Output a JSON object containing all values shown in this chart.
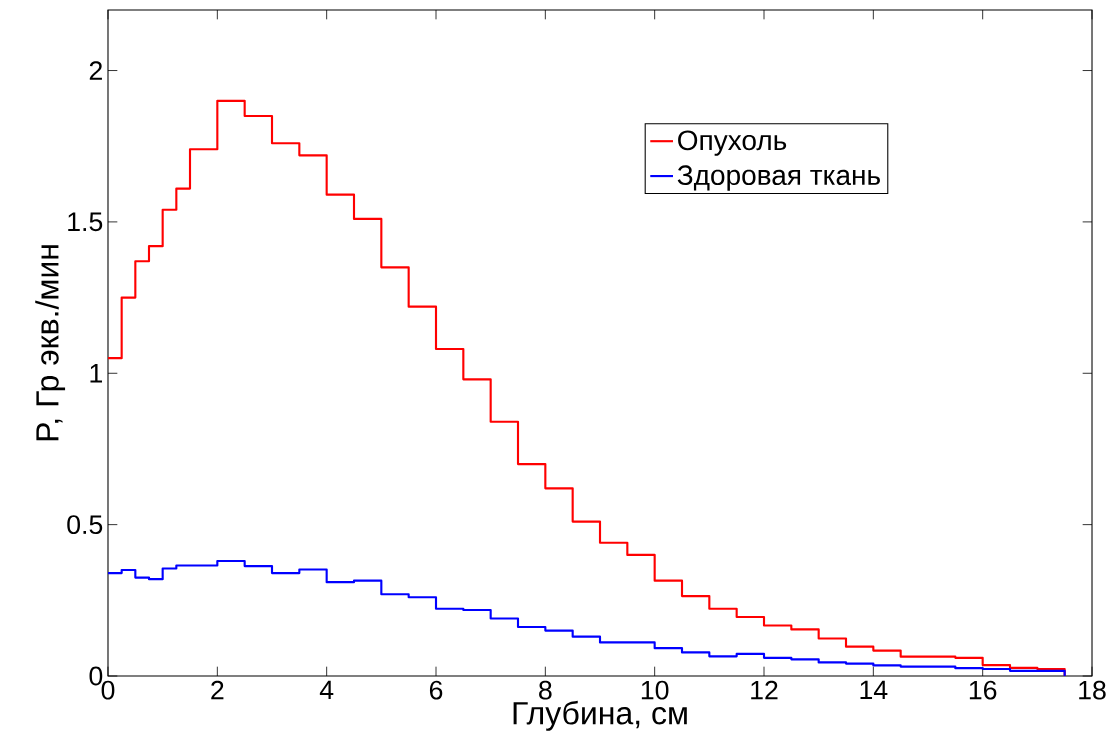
{
  "chart_data": {
    "type": "histogram",
    "xlabel": "Глубина, см",
    "ylabel": "P, Гр экв./мин",
    "bins": [
      0,
      0.25,
      0.5,
      0.75,
      1,
      1.25,
      1.5,
      2,
      2.5,
      3,
      3.5,
      4,
      4.5,
      5,
      5.5,
      6,
      6.5,
      7,
      7.5,
      8,
      8.5,
      9,
      9.5,
      10,
      10.5,
      11,
      11.5,
      12,
      12.5,
      13,
      13.5,
      14,
      14.5,
      15,
      15.5,
      16,
      16.5,
      17,
      17.5
    ],
    "series": [
      {
        "name": "Опухоль",
        "color": "#ff0000",
        "values": [
          1.05,
          1.25,
          1.37,
          1.42,
          1.54,
          1.61,
          1.74,
          1.9,
          1.85,
          1.76,
          1.72,
          1.59,
          1.51,
          1.35,
          1.22,
          1.08,
          0.98,
          0.84,
          0.7,
          0.62,
          0.51,
          0.44,
          0.4,
          0.315,
          0.264,
          0.222,
          0.195,
          0.167,
          0.154,
          0.124,
          0.097,
          0.084,
          0.064,
          0.064,
          0.06,
          0.036,
          0.027,
          0.023
        ]
      },
      {
        "name": "Здоровая ткань",
        "color": "#0000ff",
        "values": [
          0.34,
          0.35,
          0.325,
          0.32,
          0.355,
          0.365,
          0.365,
          0.38,
          0.363,
          0.34,
          0.352,
          0.31,
          0.315,
          0.27,
          0.26,
          0.222,
          0.218,
          0.19,
          0.162,
          0.15,
          0.13,
          0.111,
          0.111,
          0.092,
          0.078,
          0.065,
          0.073,
          0.06,
          0.055,
          0.045,
          0.041,
          0.035,
          0.031,
          0.031,
          0.026,
          0.023,
          0.017,
          0.017
        ]
      }
    ],
    "xlim": [
      0,
      18
    ],
    "ylim": [
      0,
      2.2
    ],
    "xticks": [
      0,
      2,
      4,
      6,
      8,
      10,
      12,
      14,
      16,
      18
    ],
    "yticks": [
      0,
      0.5,
      1,
      1.5,
      2
    ],
    "grid": false,
    "legend": "top right"
  }
}
